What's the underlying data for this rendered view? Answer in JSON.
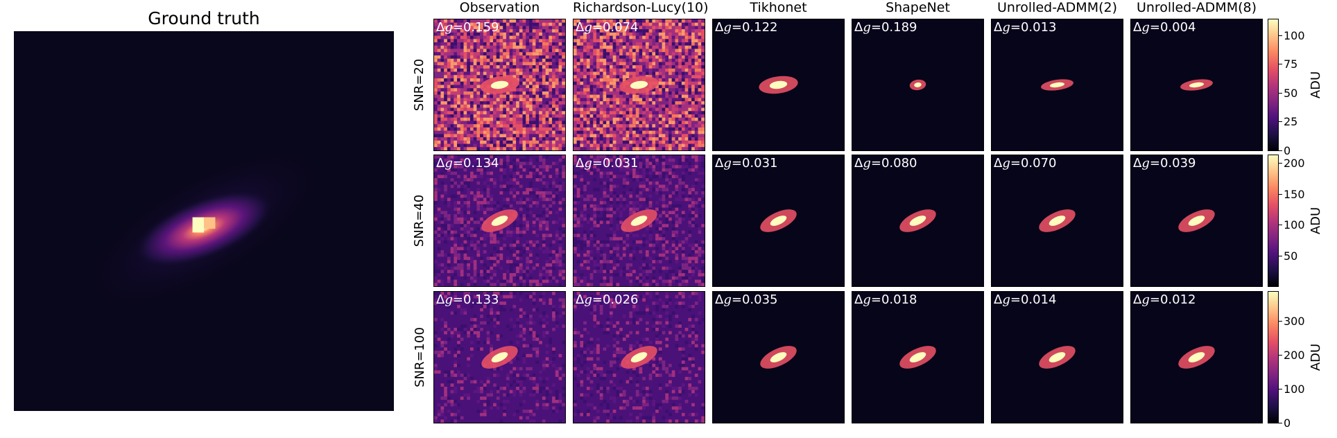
{
  "figure": {
    "ground_truth_title": "Ground truth",
    "columns": [
      "Observation",
      "Richardson-Lucy(10)",
      "Tikhonet",
      "ShapeNet",
      "Unrolled-ADMM(2)",
      "Unrolled-ADMM(8)"
    ],
    "rows": [
      {
        "label": "SNR=20",
        "delta_g": [
          "0.159",
          "0.074",
          "0.122",
          "0.189",
          "0.013",
          "0.004"
        ],
        "colorbar": {
          "ticks": [
            "100",
            "75",
            "50",
            "25",
            "0"
          ],
          "max": 115,
          "label": "ADU"
        }
      },
      {
        "label": "SNR=40",
        "delta_g": [
          "0.134",
          "0.031",
          "0.031",
          "0.080",
          "0.070",
          "0.039"
        ],
        "colorbar": {
          "ticks": [
            "200",
            "150",
            "100",
            "50"
          ],
          "max": 215,
          "label": "ADU"
        }
      },
      {
        "label": "SNR=100",
        "delta_g": [
          "0.133",
          "0.026",
          "0.035",
          "0.018",
          "0.014",
          "0.012"
        ],
        "colorbar": {
          "ticks": [
            "300",
            "200",
            "100",
            "0"
          ],
          "max": 390,
          "label": "ADU"
        }
      }
    ],
    "delta_symbol": "Δ",
    "delta_var": "g",
    "colormap": "magma"
  }
}
